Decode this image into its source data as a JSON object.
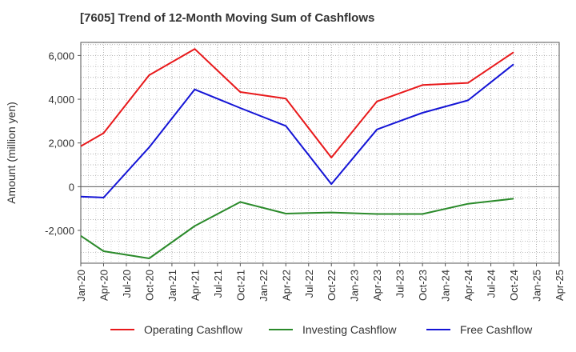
{
  "title": "[7605]  Trend of 12-Month Moving Sum of Cashflows",
  "chart_data": {
    "type": "line",
    "title": "[7605]  Trend of 12-Month Moving Sum of Cashflows",
    "xlabel": "",
    "ylabel": "Amount (million yen)",
    "x": [
      "Jan-20",
      "Apr-20",
      "Jul-20",
      "Oct-20",
      "Jan-21",
      "Apr-21",
      "Jul-21",
      "Oct-21",
      "Jan-22",
      "Apr-22",
      "Jul-22",
      "Oct-22",
      "Jan-23",
      "Apr-23",
      "Jul-23",
      "Oct-23",
      "Jan-24",
      "Apr-24",
      "Jul-24",
      "Oct-24",
      "Jan-25",
      "Apr-25"
    ],
    "ylim": [
      -3500,
      6600
    ],
    "yticks": [
      -2000,
      0,
      2000,
      4000,
      6000
    ],
    "ytick_labels": [
      "-2,000",
      "0",
      "2,000",
      "4,000",
      "6,000"
    ],
    "grid": true,
    "legend_position": "bottom",
    "series": [
      {
        "name": "Operating Cashflow",
        "color": "#e8191b",
        "values": [
          1850,
          2450,
          null,
          5100,
          null,
          6300,
          null,
          4330,
          null,
          4030,
          null,
          1330,
          null,
          3900,
          null,
          4650,
          null,
          4750,
          null,
          6150,
          null,
          null
        ]
      },
      {
        "name": "Investing Cashflow",
        "color": "#2a8a2a",
        "values": [
          -2250,
          -2950,
          null,
          -3280,
          null,
          -1800,
          null,
          -700,
          null,
          -1230,
          null,
          -1180,
          null,
          -1250,
          null,
          -1250,
          null,
          -780,
          null,
          -550,
          null,
          null
        ]
      },
      {
        "name": "Free Cashflow",
        "color": "#1414d6",
        "values": [
          -450,
          -500,
          null,
          1800,
          null,
          4450,
          null,
          3600,
          null,
          2780,
          null,
          120,
          null,
          2620,
          null,
          3380,
          null,
          3950,
          null,
          5600,
          null,
          null
        ]
      }
    ]
  }
}
